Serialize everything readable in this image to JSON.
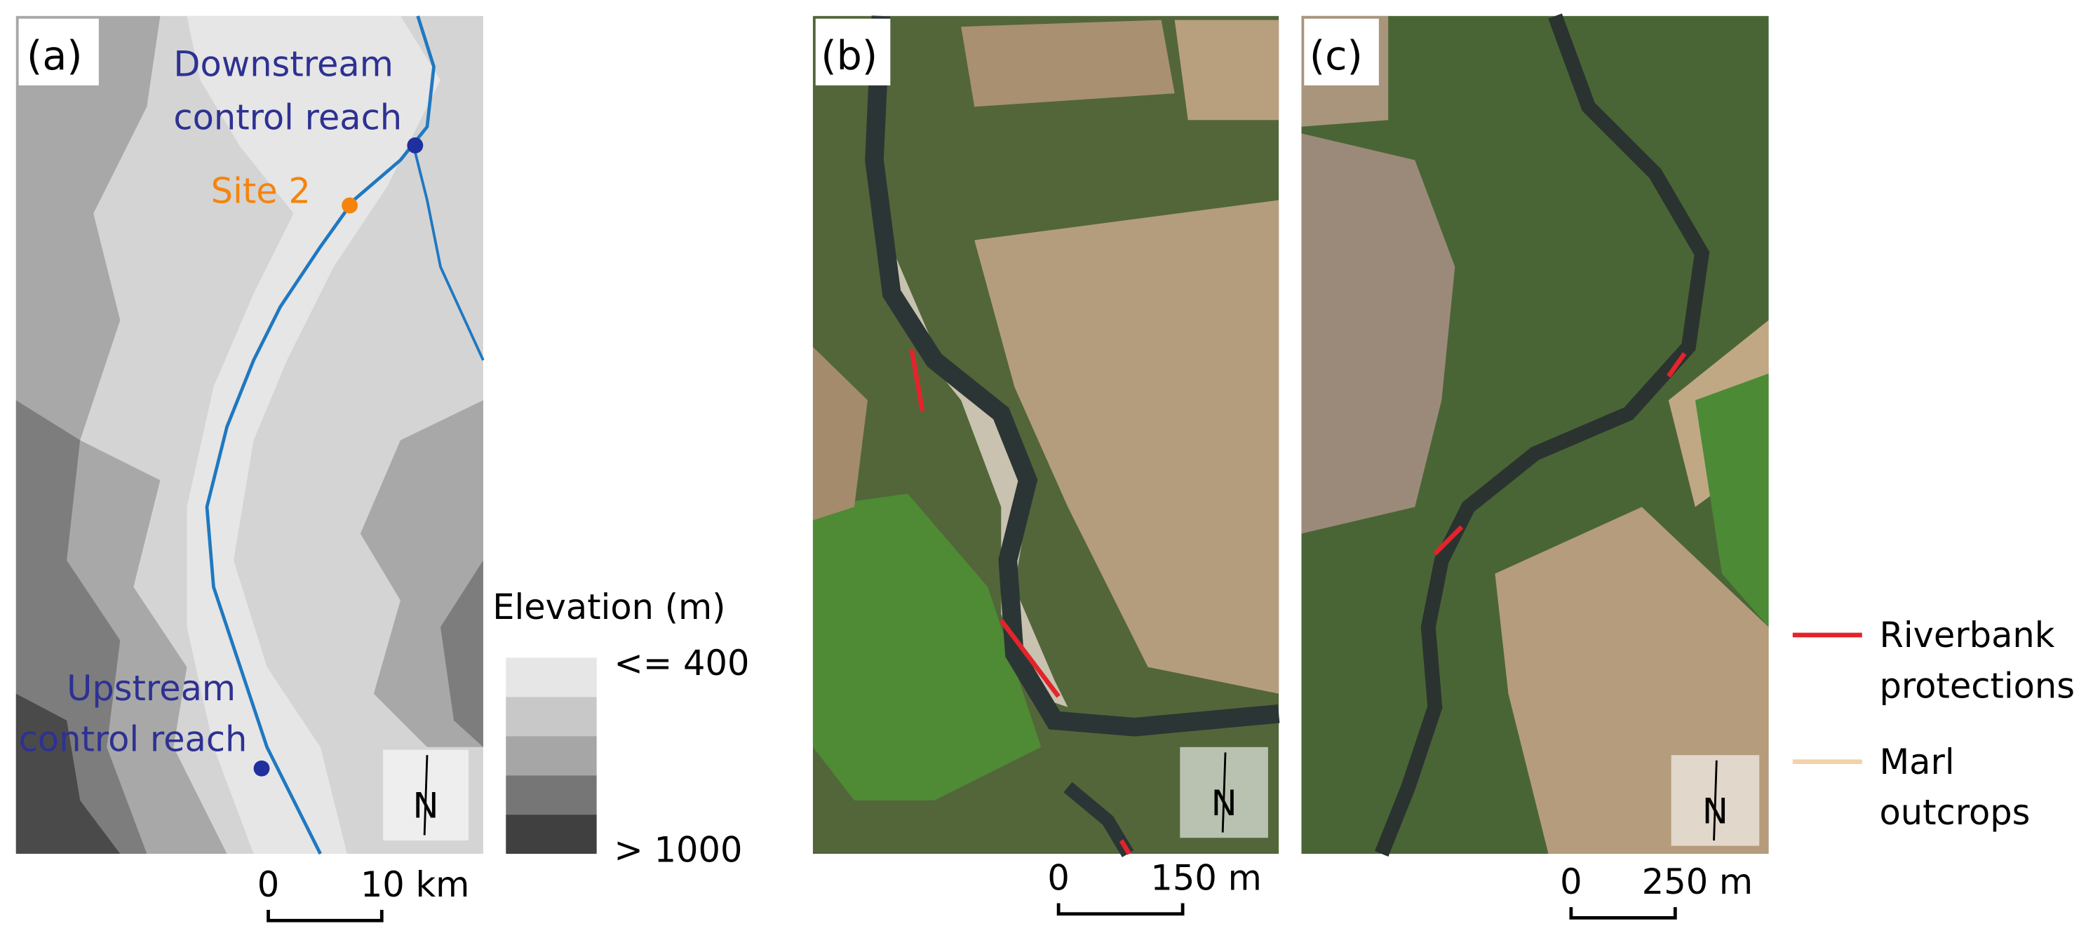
{
  "panels": [
    {
      "label": "(a)",
      "scale_bar": [
        "0",
        "10 km"
      ]
    },
    {
      "label": "(b)",
      "scale_bar": [
        "0",
        "150 m"
      ]
    },
    {
      "label": "(c)",
      "scale_bar": [
        "0",
        "250 m"
      ]
    }
  ],
  "map_a_labels": [
    {
      "lines": [
        "Downstream",
        "control reach"
      ]
    },
    {
      "lines": [
        "Site 2"
      ]
    },
    {
      "lines": [
        "Upstream",
        "control reach"
      ]
    }
  ],
  "elevation_legend": {
    "title": "Elevation (m)",
    "labels": [
      "<= 400",
      "> 1000"
    ]
  },
  "north_label": "N",
  "legend": [
    {
      "lines": [
        "Riverbank",
        "protections"
      ]
    },
    {
      "lines": [
        "Marl",
        "outcrops"
      ]
    }
  ]
}
